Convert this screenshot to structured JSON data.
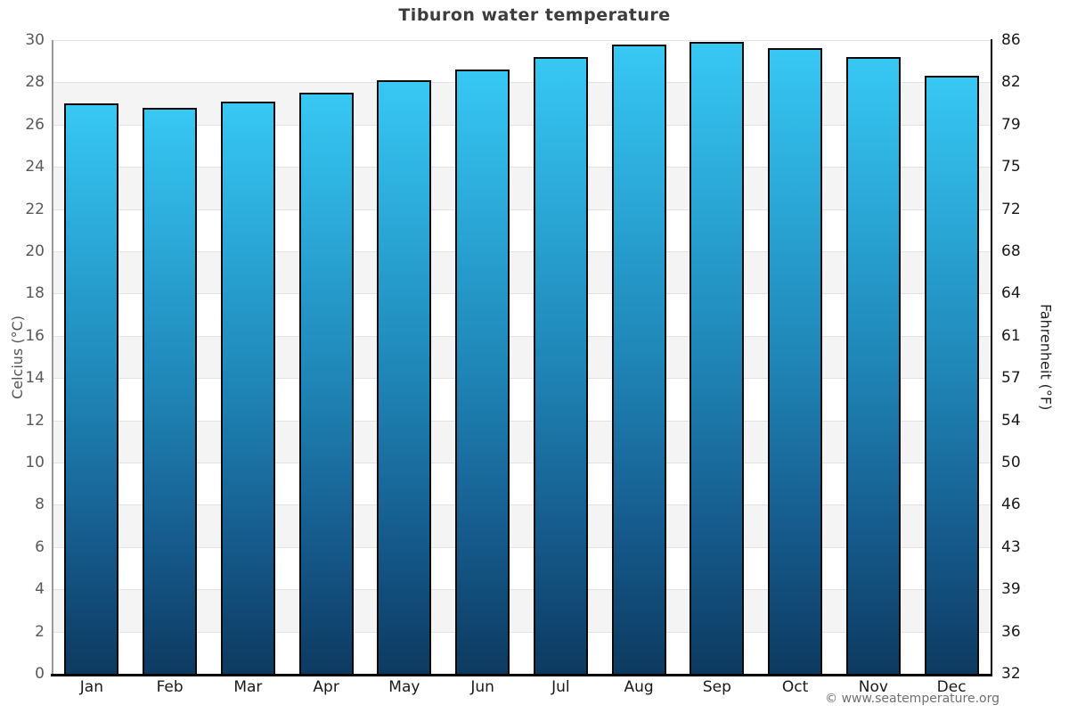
{
  "title": "Tiburon water temperature",
  "footer": "© www.seatemperature.org",
  "chart_data": {
    "type": "bar",
    "title": "Tiburon water temperature",
    "categories": [
      "Jan",
      "Feb",
      "Mar",
      "Apr",
      "May",
      "Jun",
      "Jul",
      "Aug",
      "Sep",
      "Oct",
      "Nov",
      "Dec"
    ],
    "values": [
      27.0,
      26.8,
      27.1,
      27.5,
      28.1,
      28.6,
      29.2,
      29.8,
      29.9,
      29.6,
      29.2,
      28.3
    ],
    "unit": "°C",
    "ylabel_left": "Celcius (°C)",
    "ylabel_right": "Fahrenheit (°F)",
    "ylim": [
      0,
      30
    ],
    "ytick_step": 2,
    "yticks_left": [
      30,
      28,
      26,
      24,
      22,
      20,
      18,
      16,
      14,
      12,
      10,
      8,
      6,
      4,
      2,
      0
    ],
    "yticks_right": [
      86,
      82,
      79,
      75,
      72,
      68,
      64,
      61,
      57,
      54,
      50,
      46,
      43,
      39,
      36,
      32
    ],
    "grid": "horizontal gridlines every 2°C with alternating white/gray bands",
    "legend": "none",
    "colors": {
      "bar_gradient_top": "#37c8f3",
      "bar_gradient_mid": "#1f85b6",
      "bar_gradient_bottom": "#0d3a60",
      "bar_border": "#0a0a0a",
      "band_gray": "#f4f4f4",
      "gridline": "#e3e3e3",
      "axis_left": "#9a9a9a",
      "axis_right_bottom": "#000000",
      "title": "#3d3d3d",
      "tick_left": "#5a5a5a",
      "tick_right": "#1a1a1a",
      "footer": "#707070"
    }
  }
}
